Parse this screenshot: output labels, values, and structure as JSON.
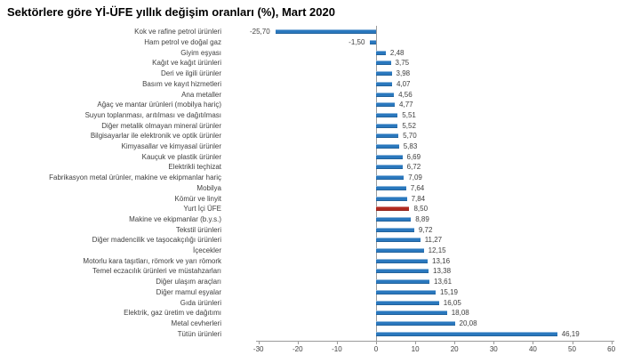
{
  "chart_data": {
    "type": "bar",
    "orientation": "horizontal",
    "title": "Sektörlere göre Yİ-ÜFE yıllık değişim oranları (%), Mart 2020",
    "categories": [
      "Kok ve rafine petrol ürünleri",
      "Ham petrol ve doğal gaz",
      "Giyim eşyası",
      "Kağıt ve kağıt ürünleri",
      "Deri ve ilgili ürünler",
      "Basım ve kayıt hizmetleri",
      "Ana metaller",
      "Ağaç ve mantar ürünleri (mobilya hariç)",
      "Suyun toplanması, arıtılması ve dağıtılması",
      "Diğer metalik olmayan mineral ürünler",
      "Bilgisayarlar ile elektronik ve optik ürünler",
      "Kimyasallar ve kimyasal ürünler",
      "Kauçuk ve plastik ürünler",
      "Elektrikli teçhizat",
      "Fabrikasyon metal ürünler, makine ve ekipmanlar hariç",
      "Mobilya",
      "Kömür ve linyit",
      "Yurt İçi ÜFE",
      "Makine ve ekipmanlar (b.y.s.)",
      "Tekstil ürünleri",
      "Diğer madencilik ve taşocakçılığı ürünleri",
      "İçecekler",
      "Motorlu kara taşıtları, römork ve yarı römork",
      "Temel eczacılık ürünleri ve müstahzarları",
      "Diğer ulaşım araçları",
      "Diğer mamul eşyalar",
      "Gıda ürünleri",
      "Elektrik, gaz üretim ve dağıtımı",
      "Metal cevherleri",
      "Tütün ürünleri"
    ],
    "values": [
      -25.7,
      -1.5,
      2.48,
      3.75,
      3.98,
      4.07,
      4.56,
      4.77,
      5.51,
      5.52,
      5.7,
      5.83,
      6.69,
      6.72,
      7.09,
      7.64,
      7.84,
      8.5,
      8.89,
      9.72,
      11.27,
      12.15,
      13.16,
      13.38,
      13.61,
      15.19,
      16.05,
      18.08,
      20.08,
      46.19
    ],
    "display_values": [
      "-25,70",
      "-1,50",
      "2,48",
      "3,75",
      "3,98",
      "4,07",
      "4,56",
      "4,77",
      "5,51",
      "5,52",
      "5,70",
      "5,83",
      "6,69",
      "6,72",
      "7,09",
      "7,64",
      "7,84",
      "8,50",
      "8,89",
      "9,72",
      "11,27",
      "12,15",
      "13,16",
      "13,38",
      "13,61",
      "15,19",
      "16,05",
      "18,08",
      "20,08",
      "46,19"
    ],
    "highlight_index": 17,
    "highlight_category": "Yurt İçi ÜFE",
    "bar_color": "#2A78BE",
    "highlight_color": "#AF2A20",
    "xlabel": "",
    "ylabel": "",
    "xlim": [
      -30,
      60
    ],
    "x_ticks": [
      -30,
      -20,
      -10,
      0,
      10,
      20,
      30,
      40,
      50,
      60
    ],
    "x_tick_labels": [
      "-30",
      "-20",
      "-10",
      "0",
      "10",
      "20",
      "30",
      "40",
      "50",
      "60"
    ],
    "grid": false,
    "legend": false
  }
}
